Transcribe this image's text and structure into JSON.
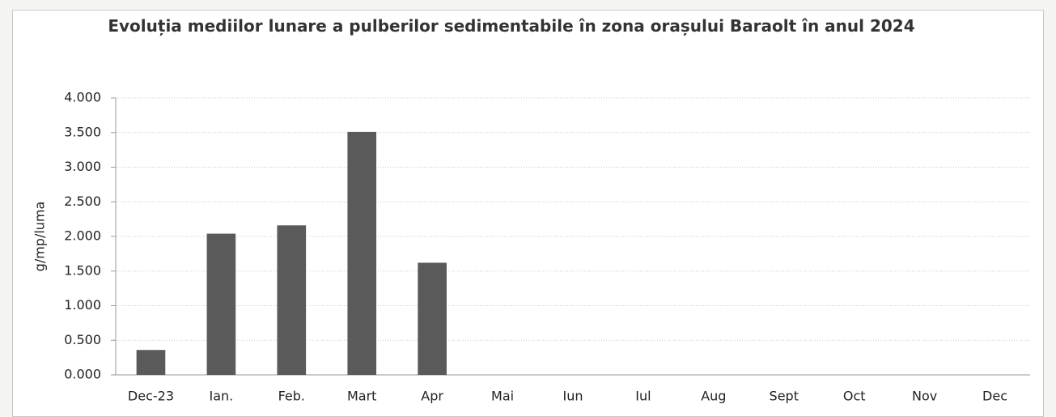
{
  "chart_data": {
    "type": "bar",
    "title": "Evoluția mediilor lunare a pulberilor sedimentabile în zona orașului Baraolt în anul 2024",
    "y_label": "g/mp/luma",
    "categories": [
      "Dec-23",
      "Ian.",
      "Feb.",
      "Mart",
      "Apr",
      "Mai",
      "Iun",
      "Iul",
      "Aug",
      "Sept",
      "Oct",
      "Nov",
      "Dec"
    ],
    "values": [
      0.36,
      2.04,
      2.16,
      3.51,
      1.62,
      null,
      null,
      null,
      null,
      null,
      null,
      null,
      null
    ],
    "color": "#5a5a5a",
    "ylim": [
      0,
      4
    ],
    "yticks": [
      {
        "value": 0,
        "label": "0.000"
      },
      {
        "value": 0.5,
        "label": "0.500"
      },
      {
        "value": 1,
        "label": "1.000"
      },
      {
        "value": 1.5,
        "label": "1.500"
      },
      {
        "value": 2,
        "label": "2.000"
      },
      {
        "value": 2.5,
        "label": "2.500"
      },
      {
        "value": 3,
        "label": "3.000"
      },
      {
        "value": 3.5,
        "label": "3.500"
      },
      {
        "value": 4,
        "label": "4.000"
      }
    ],
    "grid": true
  }
}
